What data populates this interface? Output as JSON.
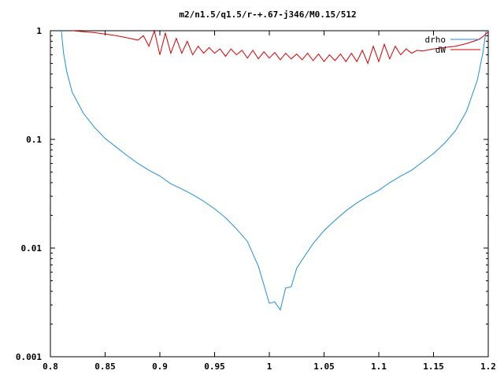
{
  "chart_data": {
    "type": "line",
    "title": "m2/n1.5/q1.5/r-+.67-j346/M0.15/512",
    "xlabel": "",
    "ylabel": "",
    "xlim": [
      0.8,
      1.2
    ],
    "ylim": [
      0.001,
      1
    ],
    "yscale": "log",
    "grid": false,
    "legend_position": "top-right",
    "x_ticks": [
      0.8,
      0.85,
      0.9,
      0.95,
      1,
      1.05,
      1.1,
      1.15,
      1.2
    ],
    "x_tick_labels": [
      "0.8",
      "0.85",
      "0.9",
      "0.95",
      "1",
      "1.05",
      "1.1",
      "1.15",
      "1.2"
    ],
    "y_ticks": [
      0.001,
      0.01,
      0.1,
      1
    ],
    "y_tick_labels": [
      "0.001",
      "0.01",
      "0.1",
      "1"
    ],
    "series": [
      {
        "name": "drho",
        "color": "#1f8fd8",
        "points": [
          [
            0.81,
            1.0
          ],
          [
            0.812,
            0.62
          ],
          [
            0.815,
            0.42
          ],
          [
            0.82,
            0.27
          ],
          [
            0.83,
            0.175
          ],
          [
            0.84,
            0.13
          ],
          [
            0.85,
            0.102
          ],
          [
            0.86,
            0.085
          ],
          [
            0.87,
            0.071
          ],
          [
            0.88,
            0.06
          ],
          [
            0.89,
            0.052
          ],
          [
            0.9,
            0.046
          ],
          [
            0.91,
            0.039
          ],
          [
            0.92,
            0.035
          ],
          [
            0.93,
            0.031
          ],
          [
            0.94,
            0.027
          ],
          [
            0.95,
            0.023
          ],
          [
            0.96,
            0.019
          ],
          [
            0.97,
            0.015
          ],
          [
            0.98,
            0.0115
          ],
          [
            0.99,
            0.0068
          ],
          [
            1.0,
            0.0031
          ],
          [
            1.005,
            0.0032
          ],
          [
            1.01,
            0.0027
          ],
          [
            1.015,
            0.0043
          ],
          [
            1.02,
            0.0044
          ],
          [
            1.025,
            0.0065
          ],
          [
            1.03,
            0.0078
          ],
          [
            1.04,
            0.011
          ],
          [
            1.05,
            0.0145
          ],
          [
            1.06,
            0.018
          ],
          [
            1.07,
            0.022
          ],
          [
            1.08,
            0.026
          ],
          [
            1.09,
            0.03
          ],
          [
            1.1,
            0.034
          ],
          [
            1.11,
            0.04
          ],
          [
            1.12,
            0.046
          ],
          [
            1.13,
            0.052
          ],
          [
            1.14,
            0.062
          ],
          [
            1.15,
            0.074
          ],
          [
            1.16,
            0.092
          ],
          [
            1.17,
            0.12
          ],
          [
            1.18,
            0.18
          ],
          [
            1.19,
            0.35
          ],
          [
            1.195,
            0.62
          ],
          [
            1.198,
            1.0
          ]
        ]
      },
      {
        "name": "dW",
        "color": "#d60000",
        "points": [
          [
            0.82,
            1.0
          ],
          [
            0.83,
            0.98
          ],
          [
            0.84,
            0.96
          ],
          [
            0.85,
            0.93
          ],
          [
            0.86,
            0.9
          ],
          [
            0.87,
            0.86
          ],
          [
            0.88,
            0.82
          ],
          [
            0.885,
            0.9
          ],
          [
            0.89,
            0.72
          ],
          [
            0.895,
            1.0
          ],
          [
            0.9,
            0.6
          ],
          [
            0.905,
            0.95
          ],
          [
            0.91,
            0.62
          ],
          [
            0.915,
            0.85
          ],
          [
            0.92,
            0.62
          ],
          [
            0.925,
            0.8
          ],
          [
            0.93,
            0.6
          ],
          [
            0.935,
            0.72
          ],
          [
            0.94,
            0.62
          ],
          [
            0.945,
            0.7
          ],
          [
            0.95,
            0.62
          ],
          [
            0.955,
            0.68
          ],
          [
            0.96,
            0.58
          ],
          [
            0.965,
            0.68
          ],
          [
            0.97,
            0.6
          ],
          [
            0.975,
            0.66
          ],
          [
            0.98,
            0.56
          ],
          [
            0.985,
            0.66
          ],
          [
            0.99,
            0.55
          ],
          [
            0.995,
            0.64
          ],
          [
            1.0,
            0.56
          ],
          [
            1.005,
            0.63
          ],
          [
            1.01,
            0.54
          ],
          [
            1.015,
            0.62
          ],
          [
            1.02,
            0.55
          ],
          [
            1.025,
            0.61
          ],
          [
            1.03,
            0.54
          ],
          [
            1.035,
            0.62
          ],
          [
            1.04,
            0.53
          ],
          [
            1.045,
            0.61
          ],
          [
            1.05,
            0.52
          ],
          [
            1.055,
            0.6
          ],
          [
            1.06,
            0.53
          ],
          [
            1.065,
            0.61
          ],
          [
            1.07,
            0.52
          ],
          [
            1.075,
            0.62
          ],
          [
            1.08,
            0.52
          ],
          [
            1.085,
            0.66
          ],
          [
            1.09,
            0.5
          ],
          [
            1.095,
            0.72
          ],
          [
            1.1,
            0.52
          ],
          [
            1.105,
            0.75
          ],
          [
            1.11,
            0.55
          ],
          [
            1.115,
            0.72
          ],
          [
            1.12,
            0.6
          ],
          [
            1.125,
            0.68
          ],
          [
            1.13,
            0.62
          ],
          [
            1.135,
            0.66
          ],
          [
            1.14,
            0.65
          ],
          [
            1.15,
            0.68
          ],
          [
            1.16,
            0.7
          ],
          [
            1.17,
            0.72
          ],
          [
            1.18,
            0.76
          ],
          [
            1.19,
            0.82
          ],
          [
            1.195,
            0.88
          ],
          [
            1.2,
            0.98
          ]
        ]
      }
    ]
  }
}
